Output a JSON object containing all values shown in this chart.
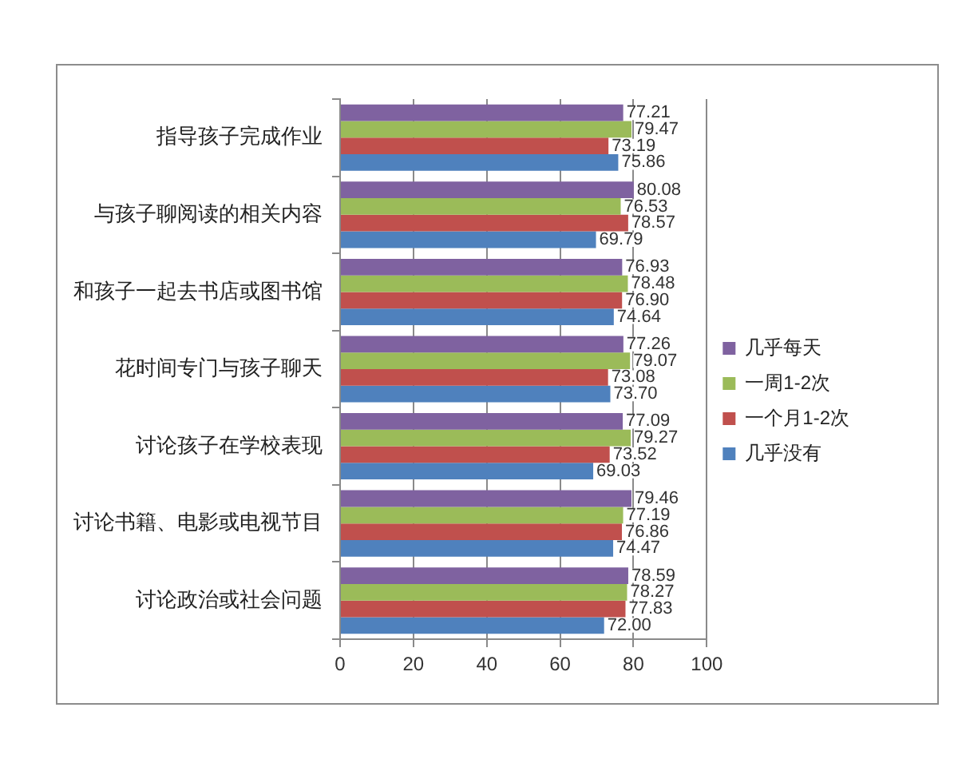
{
  "chart_data": {
    "type": "bar",
    "orientation": "horizontal",
    "categories": [
      "指导孩子完成作业",
      "与孩子聊阅读的相关内容",
      "和孩子一起去书店或图书馆",
      "花时间专门与孩子聊天",
      "讨论孩子在学校表现",
      "讨论书籍、电影或电视节目",
      "讨论政治或社会问题"
    ],
    "series": [
      {
        "name": "几乎每天",
        "color": "#7f62a0",
        "values": [
          77.21,
          80.08,
          76.93,
          77.26,
          77.09,
          79.46,
          78.59
        ],
        "value_labels": [
          "77.21",
          "80.08",
          "76.93",
          "77.26",
          "77.09",
          "79.46",
          "78.59"
        ]
      },
      {
        "name": "一周1-2次",
        "color": "#9bbb59",
        "values": [
          79.47,
          76.53,
          78.48,
          79.07,
          79.27,
          77.19,
          78.27
        ],
        "value_labels": [
          "79.47",
          "76.53",
          "78.48",
          "79.07",
          "79.27",
          "77.19",
          "78.27"
        ]
      },
      {
        "name": "一个月1-2次",
        "color": "#c0504d",
        "values": [
          73.19,
          78.57,
          76.9,
          73.08,
          73.52,
          76.86,
          77.83
        ],
        "value_labels": [
          "73.19",
          "78.57",
          "76.90",
          "73.08",
          "73.52",
          "76.86",
          "77.83"
        ]
      },
      {
        "name": "几乎没有",
        "color": "#4f81bd",
        "values": [
          75.86,
          69.79,
          74.64,
          73.7,
          69.03,
          74.47,
          72.0
        ],
        "value_labels": [
          "75.86",
          "69.79",
          "74.64",
          "73.70",
          "69.03",
          "74.47",
          "72.00"
        ]
      }
    ],
    "xlim": [
      0,
      100
    ],
    "xticks": [
      0,
      20,
      40,
      60,
      80,
      100
    ],
    "grid": "x",
    "legend": "right"
  }
}
